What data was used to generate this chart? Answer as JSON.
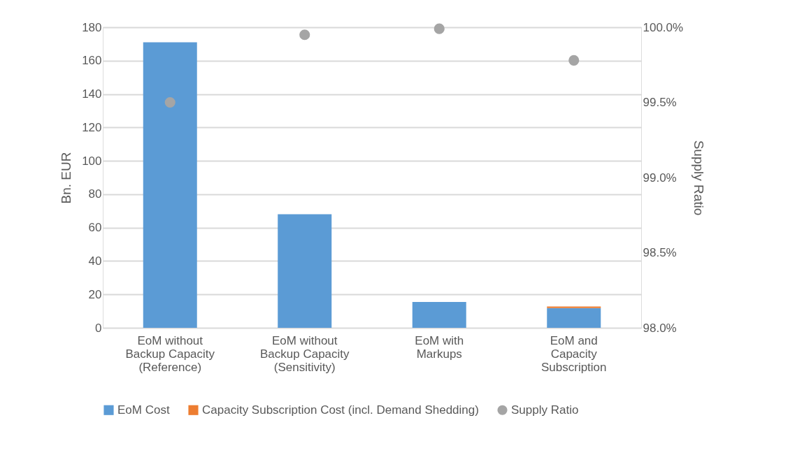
{
  "chart_data": {
    "type": "bar",
    "stacked": true,
    "ylabel": "Bn. EUR",
    "y2label": "Supply Ratio",
    "categories": [
      "EoM without Backup Capacity (Reference)",
      "EoM without Backup Capacity (Sensitivity)",
      "EoM with Markups",
      "EoM and Capacity Subscription"
    ],
    "series": [
      {
        "name": "EoM Cost",
        "color": "#5b9bd5",
        "values": [
          171,
          68,
          15.5,
          11.8
        ]
      },
      {
        "name": "Capacity Subscription Cost (incl. Demand Shedding)",
        "color": "#ed7d31",
        "values": [
          0,
          0,
          0,
          1.0
        ]
      },
      {
        "name": "Supply Ratio",
        "type": "scatter",
        "axis": "y2",
        "marker": "circle",
        "color": "#a5a5a5",
        "values": [
          99.5,
          99.95,
          99.99,
          99.78
        ]
      }
    ],
    "ylim": [
      0,
      180
    ],
    "yticks": [
      0,
      20,
      40,
      60,
      80,
      100,
      120,
      140,
      160,
      180
    ],
    "y2lim": [
      98.0,
      100.0
    ],
    "y2ticks": [
      {
        "value": 98.0,
        "label": "98.0%"
      },
      {
        "value": 98.5,
        "label": "98.5%"
      },
      {
        "value": 99.0,
        "label": "99.0%"
      },
      {
        "value": 99.5,
        "label": "99.5%"
      },
      {
        "value": 100.0,
        "label": "100.0%"
      }
    ],
    "grid": "y",
    "legend": "bottom"
  }
}
